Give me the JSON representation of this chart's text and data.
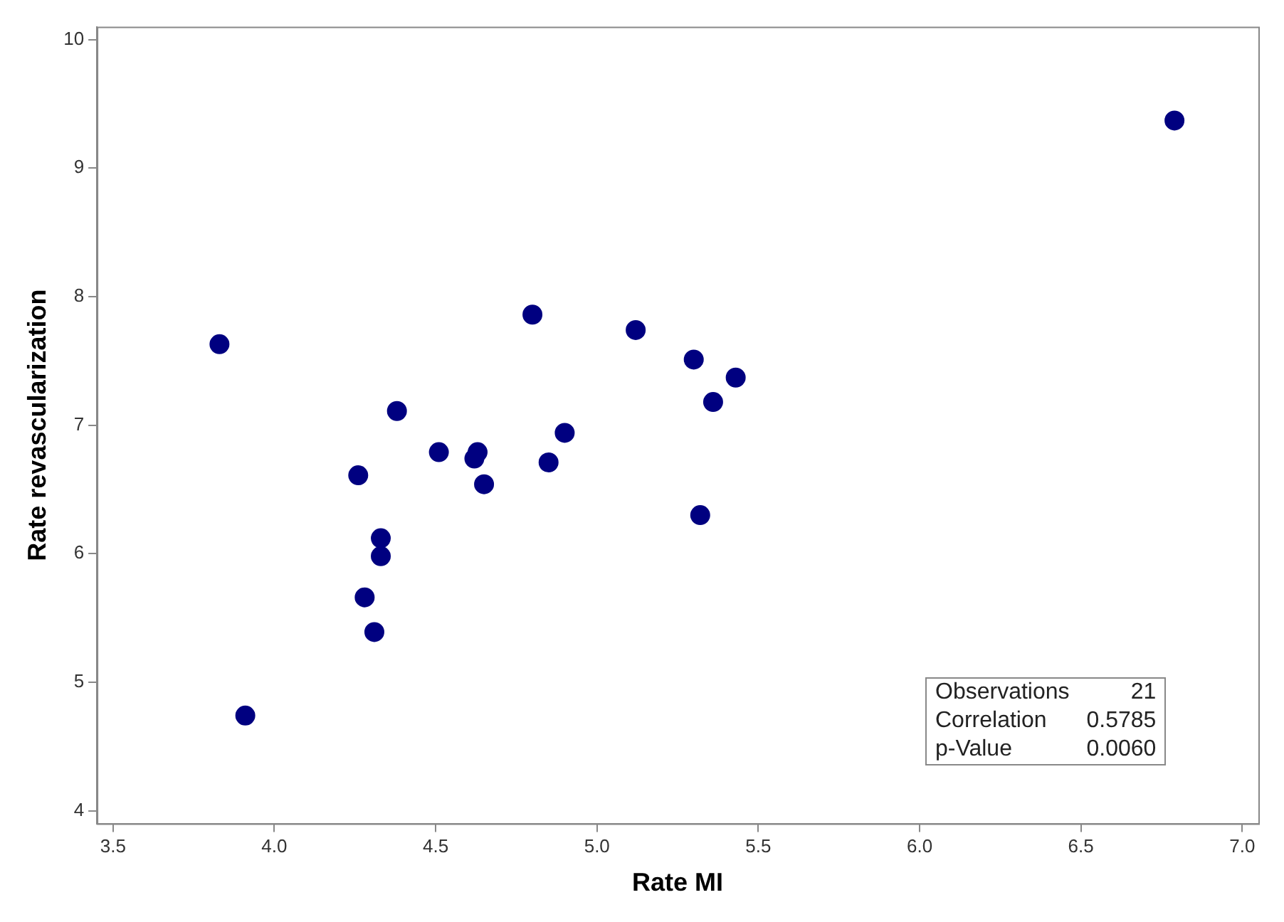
{
  "chart_data": {
    "type": "scatter",
    "xlabel": "Rate MI",
    "ylabel": "Rate revascularization",
    "x": [
      6.79,
      3.83,
      3.91,
      4.8,
      5.12,
      5.3,
      5.43,
      5.36,
      4.38,
      4.9,
      4.63,
      4.51,
      4.62,
      4.85,
      4.65,
      4.26,
      5.32,
      4.33,
      4.33,
      4.28,
      4.31
    ],
    "series": [
      {
        "color": "#000080",
        "values": [
          9.37,
          7.63,
          4.74,
          7.86,
          7.74,
          7.51,
          7.37,
          7.18,
          7.11,
          6.94,
          6.79,
          6.79,
          6.74,
          6.71,
          6.54,
          6.61,
          6.3,
          6.12,
          5.98,
          5.66,
          5.39
        ]
      }
    ],
    "xlim": [
      3.45,
      7.05
    ],
    "xticks": [
      {
        "value": 3.5,
        "label": "3.5"
      },
      {
        "value": 4,
        "label": "4.0"
      },
      {
        "value": 4.5,
        "label": "4.5"
      },
      {
        "value": 5,
        "label": "5.0"
      },
      {
        "value": 5.5,
        "label": "5.5"
      },
      {
        "value": 6,
        "label": "6.0"
      },
      {
        "value": 6.5,
        "label": "6.5"
      },
      {
        "value": 7,
        "label": "7.0"
      }
    ],
    "ylim": [
      3.9,
      10.1
    ],
    "yticks": [
      4,
      5,
      6,
      7,
      8,
      9,
      10
    ],
    "marker": "circle",
    "grid": false,
    "legend": false,
    "annotations": [
      "Observations",
      "21",
      "Correlation",
      "0.5785",
      "p-Value",
      "0.0060"
    ]
  }
}
